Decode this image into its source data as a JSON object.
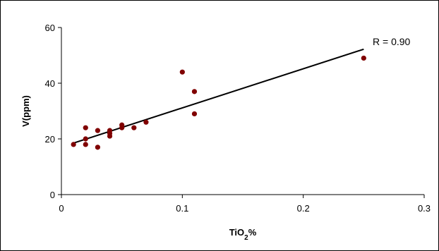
{
  "chart_data": {
    "type": "scatter",
    "xlabel": "TiO",
    "xlabel_sub": "2",
    "xlabel_suffix": "%",
    "ylabel": "V(ppm)",
    "xlim": [
      0,
      0.3
    ],
    "ylim": [
      0,
      60
    ],
    "x_ticks": [
      0,
      0.1,
      0.2,
      0.3
    ],
    "x_tick_labels": [
      "0",
      "0.1",
      "0.2",
      "0.3"
    ],
    "y_ticks": [
      0,
      20,
      40,
      60
    ],
    "y_tick_labels": [
      "0",
      "20",
      "40",
      "60"
    ],
    "grid": false,
    "points": [
      {
        "x": 0.01,
        "y": 18
      },
      {
        "x": 0.02,
        "y": 18
      },
      {
        "x": 0.02,
        "y": 20
      },
      {
        "x": 0.02,
        "y": 24
      },
      {
        "x": 0.03,
        "y": 17
      },
      {
        "x": 0.03,
        "y": 23
      },
      {
        "x": 0.04,
        "y": 21
      },
      {
        "x": 0.04,
        "y": 22
      },
      {
        "x": 0.04,
        "y": 23
      },
      {
        "x": 0.05,
        "y": 24
      },
      {
        "x": 0.05,
        "y": 25
      },
      {
        "x": 0.06,
        "y": 24
      },
      {
        "x": 0.07,
        "y": 26
      },
      {
        "x": 0.1,
        "y": 44
      },
      {
        "x": 0.11,
        "y": 37
      },
      {
        "x": 0.11,
        "y": 29
      },
      {
        "x": 0.25,
        "y": 49
      }
    ],
    "trendline": {
      "x1": 0.01,
      "y1": 18.5,
      "x2": 0.25,
      "y2": 52.2
    },
    "annotation": "R = 0.90",
    "colors": {
      "marker": "#800000",
      "line": "#000000",
      "axis": "#000000"
    }
  }
}
